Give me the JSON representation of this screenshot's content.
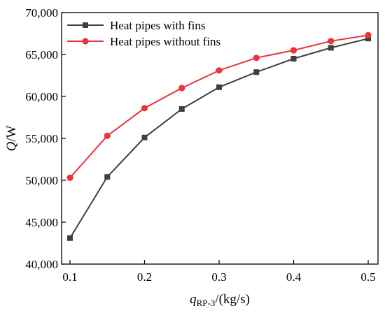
{
  "chart_data": {
    "type": "line",
    "title": "",
    "xlabel": {
      "italic": "q",
      "sub": "RP-3",
      "rest": "/(kg/s)"
    },
    "ylabel": {
      "italic": "Q",
      "rest": "/W"
    },
    "x": [
      0.1,
      0.15,
      0.2,
      0.25,
      0.3,
      0.35,
      0.4,
      0.45,
      0.5
    ],
    "xlim": [
      0.1,
      0.5
    ],
    "ylim": [
      40000,
      70000
    ],
    "xticks": [
      "0.1",
      "0.2",
      "0.3",
      "0.4",
      "0.5"
    ],
    "yticks": [
      "40,000",
      "45,000",
      "50,000",
      "55,000",
      "60,000",
      "65,000",
      "70,000"
    ],
    "grid": false,
    "legend_position": "top-left",
    "series": [
      {
        "name": "Heat pipes with fins",
        "color": "#404040",
        "marker": "square",
        "values": [
          43100,
          50400,
          55100,
          58500,
          61100,
          62900,
          64500,
          65800,
          66900
        ]
      },
      {
        "name": "Heat pipes without fins",
        "color": "#e8343a",
        "marker": "circle",
        "values": [
          50300,
          55300,
          58600,
          61000,
          63100,
          64600,
          65500,
          66600,
          67300
        ]
      }
    ]
  }
}
